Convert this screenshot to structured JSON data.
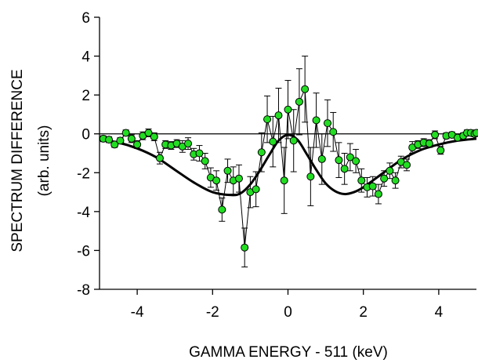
{
  "chart_data": {
    "type": "scatter",
    "title": "",
    "xlabel": "GAMMA ENERGY - 511 (keV)",
    "ylabel_line1": "SPECTRUM DIFFERENCE",
    "ylabel_line2": "(arb. units)",
    "xlim": [
      -5,
      5
    ],
    "ylim": [
      -8,
      6
    ],
    "xticks": [
      -4,
      -2,
      0,
      2,
      4
    ],
    "yticks": [
      -8,
      -6,
      -4,
      -2,
      0,
      2,
      4,
      6
    ],
    "grid": false,
    "zero_line": true,
    "colors": {
      "points_fill": "#22dd22",
      "points_stroke": "#000000",
      "line": "#000000",
      "fit": "#000000"
    },
    "series": [
      {
        "kind": "measured",
        "points": [
          {
            "x": -4.9,
            "y": -0.25,
            "err": 0.15
          },
          {
            "x": -4.75,
            "y": -0.3,
            "err": 0.15
          },
          {
            "x": -4.6,
            "y": -0.55,
            "err": 0.15
          },
          {
            "x": -4.45,
            "y": -0.35,
            "err": 0.15
          },
          {
            "x": -4.3,
            "y": 0.05,
            "err": 0.15
          },
          {
            "x": -4.15,
            "y": -0.25,
            "err": 0.2
          },
          {
            "x": -4.0,
            "y": -0.55,
            "err": 0.2
          },
          {
            "x": -3.85,
            "y": -0.1,
            "err": 0.2
          },
          {
            "x": -3.7,
            "y": 0.05,
            "err": 0.2
          },
          {
            "x": -3.55,
            "y": -0.15,
            "err": 0.2
          },
          {
            "x": -3.4,
            "y": -1.25,
            "err": 0.3
          },
          {
            "x": -3.25,
            "y": -0.55,
            "err": 0.2
          },
          {
            "x": -3.1,
            "y": -0.6,
            "err": 0.2
          },
          {
            "x": -2.95,
            "y": -0.5,
            "err": 0.2
          },
          {
            "x": -2.8,
            "y": -0.65,
            "err": 0.3
          },
          {
            "x": -2.65,
            "y": -0.5,
            "err": 0.3
          },
          {
            "x": -2.5,
            "y": -1.05,
            "err": 0.3
          },
          {
            "x": -2.35,
            "y": -1.0,
            "err": 0.4
          },
          {
            "x": -2.2,
            "y": -1.4,
            "err": 0.4
          },
          {
            "x": -2.05,
            "y": -2.25,
            "err": 0.5
          },
          {
            "x": -1.9,
            "y": -2.4,
            "err": 0.5
          },
          {
            "x": -1.75,
            "y": -3.9,
            "err": 0.6
          },
          {
            "x": -1.6,
            "y": -1.9,
            "err": 0.6
          },
          {
            "x": -1.45,
            "y": -2.4,
            "err": 0.7
          },
          {
            "x": -1.3,
            "y": -2.3,
            "err": 0.7
          },
          {
            "x": -1.15,
            "y": -5.85,
            "err": 1.0
          },
          {
            "x": -1.0,
            "y": -3.0,
            "err": 0.8
          },
          {
            "x": -0.85,
            "y": -2.85,
            "err": 0.9
          },
          {
            "x": -0.7,
            "y": -0.95,
            "err": 1.0
          },
          {
            "x": -0.55,
            "y": 0.75,
            "err": 1.2
          },
          {
            "x": -0.4,
            "y": -0.4,
            "err": 1.3
          },
          {
            "x": -0.25,
            "y": 0.95,
            "err": 1.4
          },
          {
            "x": -0.1,
            "y": -2.4,
            "err": 1.7
          },
          {
            "x": 0.0,
            "y": 1.25,
            "err": 1.5
          },
          {
            "x": 0.15,
            "y": -0.35,
            "err": 1.6
          },
          {
            "x": 0.3,
            "y": 1.65,
            "err": 1.7
          },
          {
            "x": 0.45,
            "y": 2.3,
            "err": 1.7
          },
          {
            "x": 0.6,
            "y": -2.2,
            "err": 1.5
          },
          {
            "x": 0.75,
            "y": 0.7,
            "err": 1.4
          },
          {
            "x": 0.9,
            "y": -1.3,
            "err": 1.3
          },
          {
            "x": 1.05,
            "y": 0.55,
            "err": 1.2
          },
          {
            "x": 1.2,
            "y": 0.1,
            "err": 1.0
          },
          {
            "x": 1.35,
            "y": -1.35,
            "err": 0.9
          },
          {
            "x": 1.5,
            "y": -1.8,
            "err": 0.8
          },
          {
            "x": 1.65,
            "y": -1.2,
            "err": 0.7
          },
          {
            "x": 1.8,
            "y": -1.4,
            "err": 0.6
          },
          {
            "x": 1.95,
            "y": -2.4,
            "err": 0.6
          },
          {
            "x": 2.1,
            "y": -2.75,
            "err": 0.5
          },
          {
            "x": 2.25,
            "y": -2.7,
            "err": 0.5
          },
          {
            "x": 2.4,
            "y": -3.1,
            "err": 0.5
          },
          {
            "x": 2.55,
            "y": -2.3,
            "err": 0.4
          },
          {
            "x": 2.7,
            "y": -1.9,
            "err": 0.4
          },
          {
            "x": 2.85,
            "y": -2.4,
            "err": 0.4
          },
          {
            "x": 3.0,
            "y": -1.45,
            "err": 0.3
          },
          {
            "x": 3.15,
            "y": -1.6,
            "err": 0.3
          },
          {
            "x": 3.3,
            "y": -0.7,
            "err": 0.3
          },
          {
            "x": 3.45,
            "y": -0.55,
            "err": 0.2
          },
          {
            "x": 3.6,
            "y": -0.45,
            "err": 0.2
          },
          {
            "x": 3.75,
            "y": -0.5,
            "err": 0.2
          },
          {
            "x": 3.9,
            "y": -0.05,
            "err": 0.2
          },
          {
            "x": 4.05,
            "y": -0.85,
            "err": 0.2
          },
          {
            "x": 4.2,
            "y": -0.1,
            "err": 0.15
          },
          {
            "x": 4.35,
            "y": -0.05,
            "err": 0.15
          },
          {
            "x": 4.5,
            "y": -0.2,
            "err": 0.15
          },
          {
            "x": 4.65,
            "y": -0.1,
            "err": 0.15
          },
          {
            "x": 4.75,
            "y": 0.05,
            "err": 0.15
          },
          {
            "x": 4.85,
            "y": 0.05,
            "err": 0.15
          },
          {
            "x": 4.95,
            "y": 0.0,
            "err": 0.15
          },
          {
            "x": 5.05,
            "y": 0.05,
            "err": 0.15
          }
        ]
      },
      {
        "kind": "fit",
        "x": [
          -5,
          -4.5,
          -4,
          -3.5,
          -3,
          -2.5,
          -2,
          -1.5,
          -1.25,
          -1,
          -0.75,
          -0.5,
          -0.25,
          0,
          0.25,
          0.5,
          0.75,
          1,
          1.25,
          1.5,
          1.75,
          2,
          2.5,
          3,
          3.5,
          4,
          4.5,
          5
        ],
        "y": [
          -0.3,
          -0.45,
          -0.75,
          -1.2,
          -1.85,
          -2.5,
          -3.0,
          -3.15,
          -3.05,
          -2.6,
          -1.9,
          -1.1,
          -0.35,
          -0.05,
          -0.3,
          -1.05,
          -1.85,
          -2.55,
          -2.95,
          -3.1,
          -3.0,
          -2.75,
          -2.05,
          -1.35,
          -0.85,
          -0.55,
          -0.35,
          -0.25
        ]
      }
    ]
  }
}
